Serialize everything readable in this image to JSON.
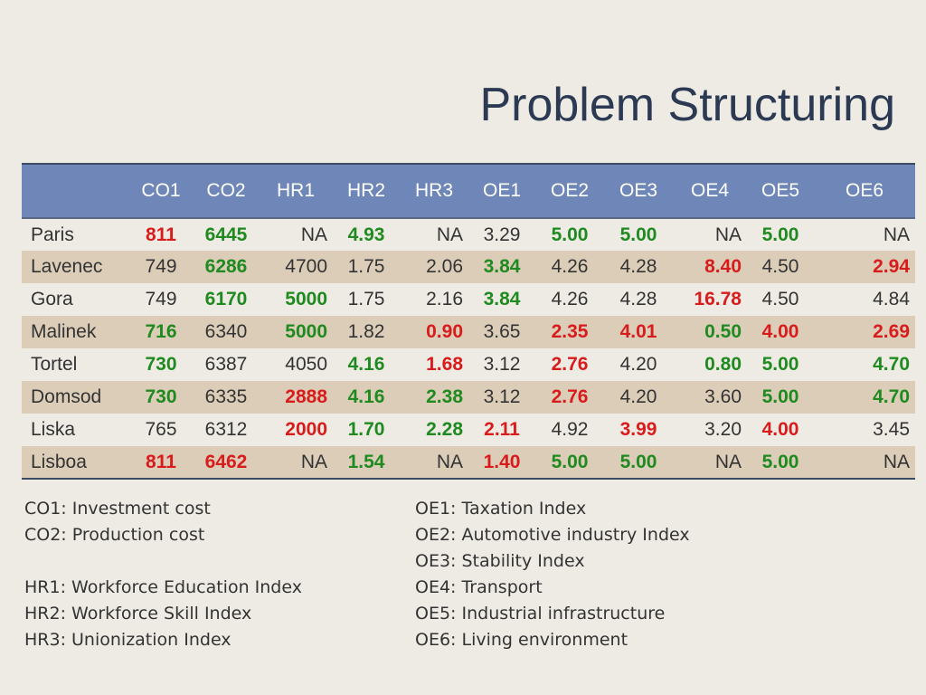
{
  "title": "Problem Structuring",
  "table": {
    "headers": [
      "",
      "CO1",
      "CO2",
      "HR1",
      "HR2",
      "HR3",
      "OE1",
      "OE2",
      "OE3",
      "OE4",
      "OE5",
      "OE6"
    ],
    "rows": [
      {
        "name": "Paris",
        "cells": [
          [
            "811",
            "red"
          ],
          [
            "6445",
            "green"
          ],
          [
            "NA",
            ""
          ],
          [
            "4.93",
            "green"
          ],
          [
            "NA",
            ""
          ],
          [
            "3.29",
            ""
          ],
          [
            "5.00",
            "green"
          ],
          [
            "5.00",
            "green"
          ],
          [
            "NA",
            ""
          ],
          [
            "5.00",
            "green"
          ],
          [
            "NA",
            ""
          ]
        ]
      },
      {
        "name": "Lavenec",
        "cells": [
          [
            "749",
            ""
          ],
          [
            "6286",
            "green"
          ],
          [
            "4700",
            ""
          ],
          [
            "1.75",
            ""
          ],
          [
            "2.06",
            ""
          ],
          [
            "3.84",
            "green"
          ],
          [
            "4.26",
            ""
          ],
          [
            "4.28",
            ""
          ],
          [
            "8.40",
            "red"
          ],
          [
            "4.50",
            ""
          ],
          [
            "2.94",
            "red"
          ]
        ]
      },
      {
        "name": "Gora",
        "cells": [
          [
            "749",
            ""
          ],
          [
            "6170",
            "green"
          ],
          [
            "5000",
            "green"
          ],
          [
            "1.75",
            ""
          ],
          [
            "2.16",
            ""
          ],
          [
            "3.84",
            "green"
          ],
          [
            "4.26",
            ""
          ],
          [
            "4.28",
            ""
          ],
          [
            "16.78",
            "red"
          ],
          [
            "4.50",
            ""
          ],
          [
            "4.84",
            ""
          ]
        ]
      },
      {
        "name": "Malinek",
        "cells": [
          [
            "716",
            "green"
          ],
          [
            "6340",
            ""
          ],
          [
            "5000",
            "green"
          ],
          [
            "1.82",
            ""
          ],
          [
            "0.90",
            "red"
          ],
          [
            "3.65",
            ""
          ],
          [
            "2.35",
            "red"
          ],
          [
            "4.01",
            "red"
          ],
          [
            "0.50",
            "green"
          ],
          [
            "4.00",
            "red"
          ],
          [
            "2.69",
            "red"
          ]
        ]
      },
      {
        "name": "Tortel",
        "cells": [
          [
            "730",
            "green"
          ],
          [
            "6387",
            ""
          ],
          [
            "4050",
            ""
          ],
          [
            "4.16",
            "green"
          ],
          [
            "1.68",
            "red"
          ],
          [
            "3.12",
            ""
          ],
          [
            "2.76",
            "red"
          ],
          [
            "4.20",
            ""
          ],
          [
            "0.80",
            "green"
          ],
          [
            "5.00",
            "green"
          ],
          [
            "4.70",
            "green"
          ]
        ]
      },
      {
        "name": "Domsod",
        "cells": [
          [
            "730",
            "green"
          ],
          [
            "6335",
            ""
          ],
          [
            "2888",
            "red"
          ],
          [
            "4.16",
            "green"
          ],
          [
            "2.38",
            "green"
          ],
          [
            "3.12",
            ""
          ],
          [
            "2.76",
            "red"
          ],
          [
            "4.20",
            ""
          ],
          [
            "3.60",
            ""
          ],
          [
            "5.00",
            "green"
          ],
          [
            "4.70",
            "green"
          ]
        ]
      },
      {
        "name": "Liska",
        "cells": [
          [
            "765",
            ""
          ],
          [
            "6312",
            ""
          ],
          [
            "2000",
            "red"
          ],
          [
            "1.70",
            "green"
          ],
          [
            "2.28",
            "green"
          ],
          [
            "2.11",
            "red"
          ],
          [
            "4.92",
            ""
          ],
          [
            "3.99",
            "red"
          ],
          [
            "3.20",
            ""
          ],
          [
            "4.00",
            "red"
          ],
          [
            "3.45",
            ""
          ]
        ]
      },
      {
        "name": "Lisboa",
        "cells": [
          [
            "811",
            "red"
          ],
          [
            "6462",
            "red"
          ],
          [
            "NA",
            ""
          ],
          [
            "1.54",
            "green"
          ],
          [
            "NA",
            ""
          ],
          [
            "1.40",
            "red"
          ],
          [
            "5.00",
            "green"
          ],
          [
            "5.00",
            "green"
          ],
          [
            "NA",
            ""
          ],
          [
            "5.00",
            "green"
          ],
          [
            "NA",
            ""
          ]
        ]
      }
    ]
  },
  "legend_left": [
    "CO1: Investment cost",
    "CO2: Production cost",
    "",
    "HR1: Workforce Education Index",
    "HR2: Workforce Skill Index",
    "HR3: Unionization Index"
  ],
  "legend_right": [
    "OE1: Taxation Index",
    "OE2: Automotive industry Index",
    "OE3: Stability Index",
    "OE4: Transport",
    "OE5: Industrial infrastructure",
    "OE6: Living environment"
  ]
}
